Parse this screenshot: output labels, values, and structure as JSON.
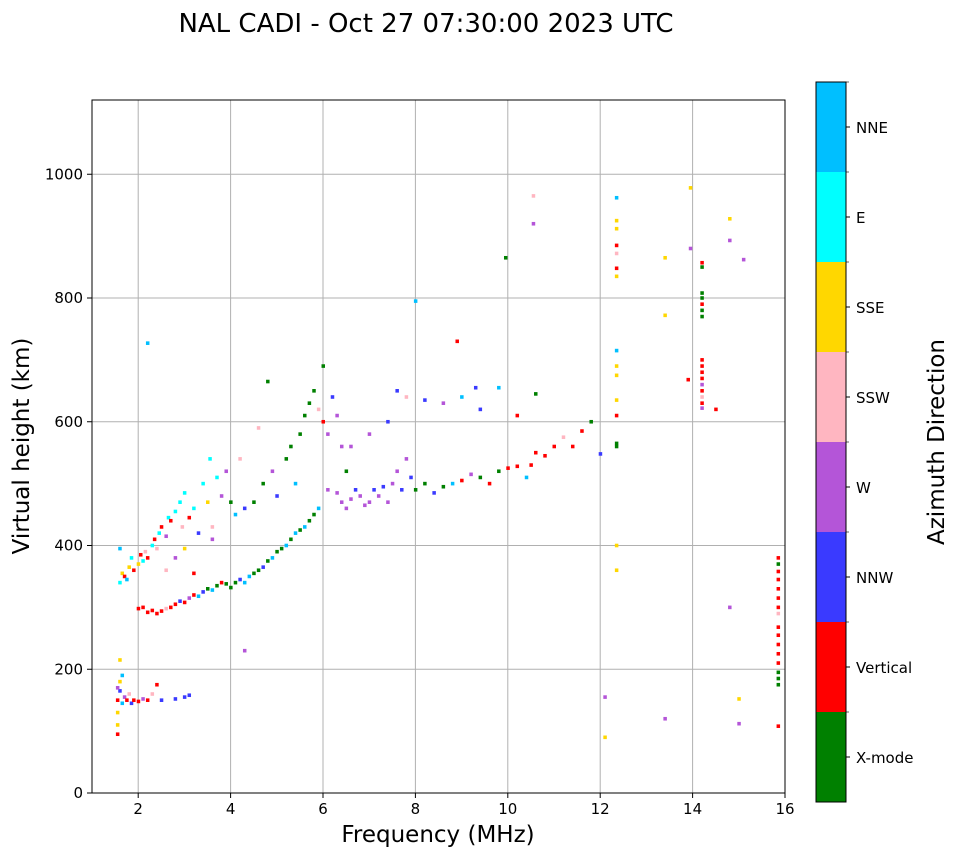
{
  "chart_data": {
    "type": "scatter",
    "title": "NAL CADI - Oct 27 07:30:00 2023 UTC",
    "xlabel": "Frequency (MHz)",
    "ylabel": "Virtual height (km)",
    "xlim": [
      1,
      16
    ],
    "ylim": [
      0,
      1120
    ],
    "xticks": [
      "2",
      "4",
      "6",
      "8",
      "10",
      "12",
      "14",
      "16"
    ],
    "xtick_values": [
      2,
      4,
      6,
      8,
      10,
      12,
      14,
      16
    ],
    "yticks": [
      "0",
      "200",
      "400",
      "600",
      "800",
      "1000"
    ],
    "ytick_values": [
      0,
      200,
      400,
      600,
      800,
      1000
    ],
    "grid": true,
    "colorbar": {
      "label": "Azimuth Direction",
      "categories": [
        "X-mode",
        "Vertical",
        "NNW",
        "W",
        "SSW",
        "SSE",
        "E",
        "NNE"
      ],
      "colors": [
        "#008000",
        "#ff0000",
        "#3a3aff",
        "#b455d8",
        "#ffb6c1",
        "#ffd700",
        "#00ffff",
        "#00bfff"
      ]
    },
    "points_format": "[frequency MHz, virtual height km, category index]",
    "points": [
      [
        1.55,
        95,
        1
      ],
      [
        1.55,
        110,
        5
      ],
      [
        1.55,
        130,
        5
      ],
      [
        1.55,
        150,
        1
      ],
      [
        1.6,
        165,
        2
      ],
      [
        1.6,
        180,
        5
      ],
      [
        1.6,
        215,
        5
      ],
      [
        1.65,
        145,
        7
      ],
      [
        1.7,
        155,
        3
      ],
      [
        1.75,
        150,
        1
      ],
      [
        1.8,
        160,
        4
      ],
      [
        1.85,
        145,
        2
      ],
      [
        1.9,
        150,
        1
      ],
      [
        2.0,
        148,
        1
      ],
      [
        2.1,
        152,
        3
      ],
      [
        2.2,
        150,
        1
      ],
      [
        2.3,
        160,
        4
      ],
      [
        2.4,
        175,
        1
      ],
      [
        2.5,
        150,
        2
      ],
      [
        2.8,
        152,
        2
      ],
      [
        3.0,
        155,
        2
      ],
      [
        3.1,
        158,
        2
      ],
      [
        1.55,
        170,
        3
      ],
      [
        1.65,
        190,
        7
      ],
      [
        1.6,
        340,
        6
      ],
      [
        1.65,
        355,
        5
      ],
      [
        1.7,
        350,
        1
      ],
      [
        1.75,
        345,
        7
      ],
      [
        1.8,
        365,
        5
      ],
      [
        1.85,
        380,
        6
      ],
      [
        1.6,
        395,
        7
      ],
      [
        1.9,
        360,
        1
      ],
      [
        2.0,
        370,
        5
      ],
      [
        2.05,
        385,
        1
      ],
      [
        2.1,
        375,
        6
      ],
      [
        2.15,
        390,
        4
      ],
      [
        2.2,
        380,
        1
      ],
      [
        2.3,
        400,
        6
      ],
      [
        2.35,
        410,
        1
      ],
      [
        2.4,
        395,
        4
      ],
      [
        2.45,
        420,
        6
      ],
      [
        2.5,
        430,
        1
      ],
      [
        2.6,
        415,
        3
      ],
      [
        2.65,
        445,
        6
      ],
      [
        2.7,
        440,
        1
      ],
      [
        2.8,
        455,
        6
      ],
      [
        2.9,
        470,
        6
      ],
      [
        2.95,
        430,
        4
      ],
      [
        3.0,
        485,
        6
      ],
      [
        3.1,
        445,
        1
      ],
      [
        3.2,
        460,
        6
      ],
      [
        3.3,
        420,
        2
      ],
      [
        3.4,
        500,
        6
      ],
      [
        3.5,
        470,
        5
      ],
      [
        3.55,
        540,
        6
      ],
      [
        3.6,
        430,
        4
      ],
      [
        3.7,
        510,
        6
      ],
      [
        3.8,
        480,
        3
      ],
      [
        3.9,
        520,
        3
      ],
      [
        4.0,
        470,
        0
      ],
      [
        4.1,
        450,
        7
      ],
      [
        4.2,
        540,
        4
      ],
      [
        4.3,
        460,
        2
      ],
      [
        2.8,
        380,
        3
      ],
      [
        2.6,
        360,
        4
      ],
      [
        3.2,
        355,
        1
      ],
      [
        3.6,
        410,
        3
      ],
      [
        3.0,
        395,
        5
      ],
      [
        2.0,
        298,
        1
      ],
      [
        2.1,
        300,
        1
      ],
      [
        2.2,
        292,
        1
      ],
      [
        2.3,
        295,
        1
      ],
      [
        2.4,
        290,
        1
      ],
      [
        2.5,
        294,
        1
      ],
      [
        2.6,
        298,
        4
      ],
      [
        2.7,
        300,
        1
      ],
      [
        2.8,
        305,
        1
      ],
      [
        2.9,
        310,
        2
      ],
      [
        3.0,
        308,
        1
      ],
      [
        3.1,
        315,
        3
      ],
      [
        3.2,
        320,
        1
      ],
      [
        3.3,
        318,
        7
      ],
      [
        3.4,
        325,
        2
      ],
      [
        3.5,
        330,
        0
      ],
      [
        3.6,
        328,
        7
      ],
      [
        3.7,
        335,
        0
      ],
      [
        3.8,
        340,
        1
      ],
      [
        3.9,
        338,
        0
      ],
      [
        4.0,
        332,
        0
      ],
      [
        4.1,
        340,
        0
      ],
      [
        4.2,
        345,
        2
      ],
      [
        4.3,
        340,
        7
      ],
      [
        4.4,
        350,
        7
      ],
      [
        4.5,
        355,
        0
      ],
      [
        4.6,
        360,
        0
      ],
      [
        4.7,
        365,
        2
      ],
      [
        4.8,
        375,
        0
      ],
      [
        4.9,
        380,
        7
      ],
      [
        5.0,
        390,
        0
      ],
      [
        5.1,
        395,
        0
      ],
      [
        5.2,
        400,
        7
      ],
      [
        5.3,
        410,
        0
      ],
      [
        5.4,
        420,
        7
      ],
      [
        5.5,
        425,
        0
      ],
      [
        5.6,
        430,
        7
      ],
      [
        5.7,
        440,
        0
      ],
      [
        5.8,
        450,
        0
      ],
      [
        5.9,
        460,
        7
      ],
      [
        4.5,
        470,
        0
      ],
      [
        4.7,
        500,
        0
      ],
      [
        4.9,
        520,
        3
      ],
      [
        5.0,
        480,
        2
      ],
      [
        5.2,
        540,
        0
      ],
      [
        5.3,
        560,
        0
      ],
      [
        5.4,
        500,
        7
      ],
      [
        5.5,
        580,
        0
      ],
      [
        5.6,
        610,
        0
      ],
      [
        5.7,
        630,
        0
      ],
      [
        5.8,
        650,
        0
      ],
      [
        5.9,
        620,
        4
      ],
      [
        6.0,
        690,
        0
      ],
      [
        6.0,
        600,
        1
      ],
      [
        6.1,
        580,
        3
      ],
      [
        6.2,
        640,
        2
      ],
      [
        6.3,
        610,
        3
      ],
      [
        6.4,
        560,
        3
      ],
      [
        6.5,
        520,
        0
      ],
      [
        4.8,
        665,
        0
      ],
      [
        4.6,
        590,
        4
      ],
      [
        6.1,
        490,
        3
      ],
      [
        6.3,
        485,
        3
      ],
      [
        6.4,
        470,
        3
      ],
      [
        6.5,
        460,
        3
      ],
      [
        6.6,
        475,
        3
      ],
      [
        6.7,
        490,
        2
      ],
      [
        6.8,
        480,
        3
      ],
      [
        6.9,
        465,
        3
      ],
      [
        7.0,
        470,
        3
      ],
      [
        7.1,
        490,
        2
      ],
      [
        7.2,
        480,
        3
      ],
      [
        7.3,
        495,
        2
      ],
      [
        7.4,
        470,
        3
      ],
      [
        7.5,
        500,
        3
      ],
      [
        7.6,
        520,
        3
      ],
      [
        7.7,
        490,
        2
      ],
      [
        7.8,
        540,
        3
      ],
      [
        7.9,
        510,
        2
      ],
      [
        8.0,
        490,
        0
      ],
      [
        8.2,
        500,
        0
      ],
      [
        8.4,
        485,
        2
      ],
      [
        8.6,
        495,
        0
      ],
      [
        8.8,
        500,
        7
      ],
      [
        9.0,
        505,
        1
      ],
      [
        9.2,
        515,
        3
      ],
      [
        9.4,
        510,
        0
      ],
      [
        9.6,
        500,
        1
      ],
      [
        9.8,
        520,
        0
      ],
      [
        10.0,
        525,
        1
      ],
      [
        10.2,
        528,
        1
      ],
      [
        10.4,
        510,
        7
      ],
      [
        10.5,
        530,
        1
      ],
      [
        10.6,
        550,
        1
      ],
      [
        10.8,
        545,
        1
      ],
      [
        11.0,
        560,
        1
      ],
      [
        11.2,
        575,
        4
      ],
      [
        11.4,
        560,
        1
      ],
      [
        11.6,
        585,
        1
      ],
      [
        11.8,
        600,
        0
      ],
      [
        12.0,
        548,
        2
      ],
      [
        6.6,
        560,
        3
      ],
      [
        7.0,
        580,
        3
      ],
      [
        7.4,
        600,
        2
      ],
      [
        7.6,
        650,
        2
      ],
      [
        7.8,
        640,
        4
      ],
      [
        8.2,
        635,
        2
      ],
      [
        8.6,
        630,
        3
      ],
      [
        9.0,
        640,
        7
      ],
      [
        9.3,
        655,
        2
      ],
      [
        9.8,
        655,
        7
      ],
      [
        10.6,
        645,
        0
      ],
      [
        10.2,
        610,
        1
      ],
      [
        9.4,
        620,
        2
      ],
      [
        8.9,
        730,
        1
      ],
      [
        8.0,
        795,
        7
      ],
      [
        2.2,
        727,
        7
      ],
      [
        4.3,
        230,
        3
      ],
      [
        9.95,
        865,
        0
      ],
      [
        10.55,
        920,
        3
      ],
      [
        10.55,
        965,
        4
      ],
      [
        12.1,
        90,
        5
      ],
      [
        12.1,
        155,
        3
      ],
      [
        12.35,
        360,
        5
      ],
      [
        12.35,
        400,
        5
      ],
      [
        12.35,
        560,
        0
      ],
      [
        12.35,
        565,
        0
      ],
      [
        12.35,
        610,
        1
      ],
      [
        12.35,
        635,
        5
      ],
      [
        12.35,
        675,
        5
      ],
      [
        12.35,
        690,
        5
      ],
      [
        12.35,
        715,
        7
      ],
      [
        12.35,
        835,
        5
      ],
      [
        12.35,
        848,
        1
      ],
      [
        12.35,
        872,
        4
      ],
      [
        12.35,
        885,
        1
      ],
      [
        12.35,
        912,
        5
      ],
      [
        12.35,
        925,
        5
      ],
      [
        12.35,
        962,
        7
      ],
      [
        13.4,
        120,
        3
      ],
      [
        13.4,
        772,
        5
      ],
      [
        13.4,
        865,
        5
      ],
      [
        13.9,
        668,
        1
      ],
      [
        13.95,
        880,
        3
      ],
      [
        13.95,
        978,
        5
      ],
      [
        14.5,
        620,
        1
      ],
      [
        14.8,
        300,
        3
      ],
      [
        14.8,
        893,
        3
      ],
      [
        14.8,
        928,
        5
      ],
      [
        15.0,
        112,
        3
      ],
      [
        15.0,
        152,
        5
      ],
      [
        15.1,
        862,
        3
      ],
      [
        14.2,
        622,
        3
      ],
      [
        14.2,
        630,
        1
      ],
      [
        14.2,
        640,
        4
      ],
      [
        14.2,
        650,
        1
      ],
      [
        14.2,
        660,
        3
      ],
      [
        14.2,
        670,
        1
      ],
      [
        14.2,
        680,
        1
      ],
      [
        14.2,
        690,
        1
      ],
      [
        14.2,
        700,
        1
      ],
      [
        14.2,
        770,
        0
      ],
      [
        14.2,
        780,
        0
      ],
      [
        14.2,
        790,
        1
      ],
      [
        14.2,
        800,
        0
      ],
      [
        14.2,
        808,
        0
      ],
      [
        14.2,
        850,
        0
      ],
      [
        14.2,
        857,
        1
      ],
      [
        15.85,
        108,
        1
      ],
      [
        15.85,
        175,
        0
      ],
      [
        15.85,
        185,
        0
      ],
      [
        15.85,
        195,
        0
      ],
      [
        15.85,
        210,
        1
      ],
      [
        15.85,
        225,
        1
      ],
      [
        15.85,
        240,
        1
      ],
      [
        15.85,
        255,
        1
      ],
      [
        15.85,
        268,
        1
      ],
      [
        15.85,
        290,
        4
      ],
      [
        15.85,
        300,
        1
      ],
      [
        15.85,
        315,
        1
      ],
      [
        15.85,
        330,
        1
      ],
      [
        15.85,
        345,
        1
      ],
      [
        15.85,
        358,
        1
      ],
      [
        15.85,
        370,
        0
      ],
      [
        15.85,
        380,
        1
      ]
    ]
  }
}
